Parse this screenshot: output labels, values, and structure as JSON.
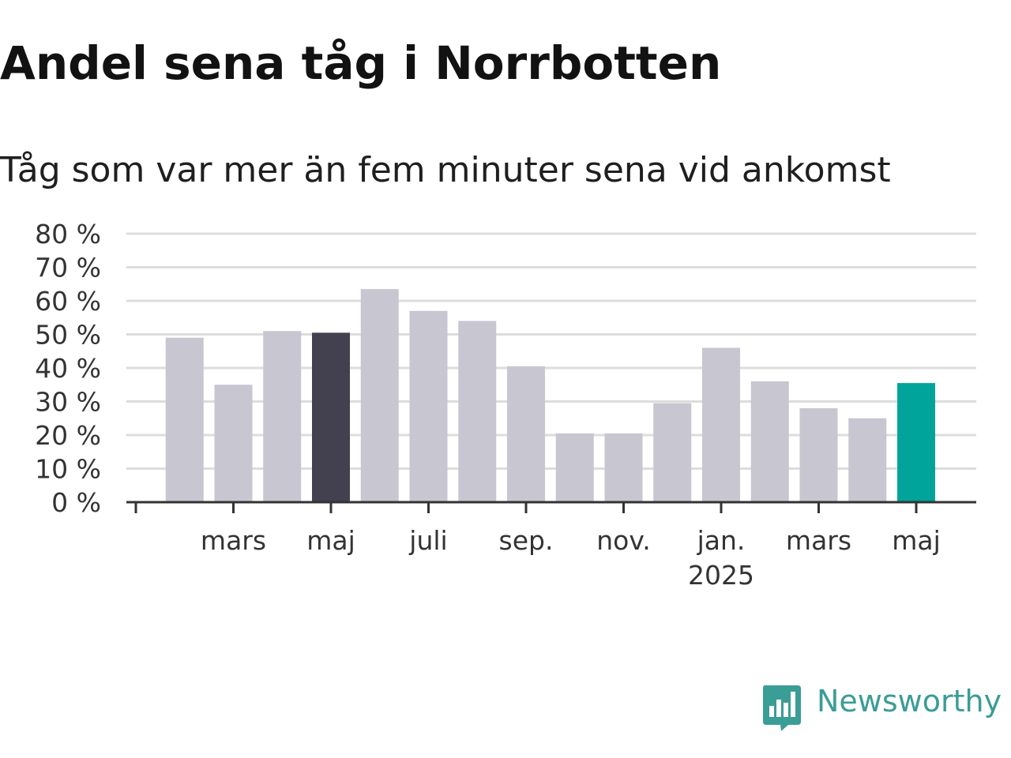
{
  "title": "Andel sena tåg i Norrbotten",
  "subtitle": "Tåg som var mer än fem minuter sena vid ankomst",
  "colors": {
    "bar_default": "#c8c6d1",
    "bar_highlight": "#434050",
    "bar_latest": "#00a49a",
    "grid": "#dddddd",
    "axis": "#333333",
    "text": "#333333",
    "logo": "#3a9d96"
  },
  "chart_data": {
    "type": "bar",
    "title": "Andel sena tåg i Norrbotten",
    "subtitle": "Tåg som var mer än fem minuter sena vid ankomst",
    "xlabel": "",
    "ylabel": "",
    "ylim": [
      0,
      80
    ],
    "yticks": [
      0,
      10,
      20,
      30,
      40,
      50,
      60,
      70,
      80
    ],
    "ytick_labels": [
      "0 %",
      "10 %",
      "20 %",
      "30 %",
      "40 %",
      "50 %",
      "60 %",
      "70 %",
      "80 %"
    ],
    "grid": true,
    "legend": false,
    "categories": [
      "2024-02",
      "2024-03",
      "2024-04",
      "2024-05",
      "2024-06",
      "2024-07",
      "2024-08",
      "2024-09",
      "2024-10",
      "2024-11",
      "2024-12",
      "2025-01",
      "2025-02",
      "2025-03",
      "2025-04",
      "2025-05"
    ],
    "values": [
      49,
      35,
      51,
      50.5,
      63.5,
      57,
      54,
      40.5,
      20.5,
      20.5,
      29.5,
      46,
      36,
      28,
      25,
      35.5
    ],
    "highlights": {
      "2024-05": "bar_highlight",
      "2025-05": "bar_latest"
    },
    "x_ticks": [
      {
        "at": "2024-01",
        "label": ""
      },
      {
        "at": "2024-03",
        "label": "mars"
      },
      {
        "at": "2024-05",
        "label": "maj"
      },
      {
        "at": "2024-07",
        "label": "juli"
      },
      {
        "at": "2024-09",
        "label": "sep."
      },
      {
        "at": "2024-11",
        "label": "nov."
      },
      {
        "at": "2025-01",
        "label": "jan.",
        "label2": "2025"
      },
      {
        "at": "2025-03",
        "label": "mars"
      },
      {
        "at": "2025-05",
        "label": "maj"
      }
    ]
  },
  "logo": {
    "text": "Newsworthy",
    "icon": "bar-chart-speech-bubble-icon"
  }
}
